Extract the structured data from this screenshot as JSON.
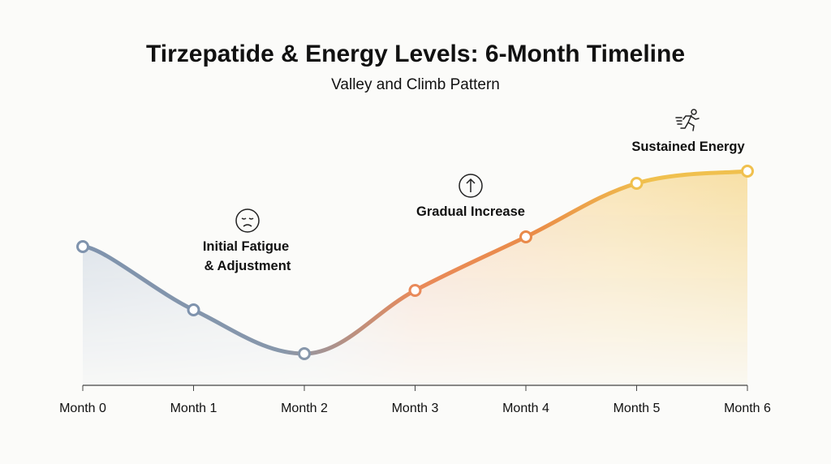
{
  "chart_data": {
    "type": "line",
    "title": "Tirzepatide & Energy Levels: 6-Month Timeline",
    "subtitle": "Valley and Climb Pattern",
    "categories": [
      "Month 0",
      "Month 1",
      "Month 2",
      "Month 3",
      "Month 4",
      "Month 5",
      "Month 6"
    ],
    "values": [
      57,
      31,
      13,
      39,
      61,
      83,
      88
    ],
    "ylim": [
      0,
      100
    ],
    "xlabel": "",
    "ylabel": "",
    "grid": false,
    "point_colors": [
      "#7f93ad",
      "#7f93ad",
      "#8797ab",
      "#e98a5a",
      "#e98a4a",
      "#f0c04e",
      "#f0c04e"
    ],
    "annotations": [
      {
        "text": [
          "Initial Fatigue",
          "& Adjustment"
        ],
        "icon": "sad-face-icon",
        "at": "Month 1.5"
      },
      {
        "text": [
          "Gradual Increase"
        ],
        "icon": "arrow-up-circle-icon",
        "at": "Month 3.5"
      },
      {
        "text": [
          "Sustained Energy"
        ],
        "icon": "running-person-icon",
        "at": "Month 5.5"
      }
    ]
  }
}
